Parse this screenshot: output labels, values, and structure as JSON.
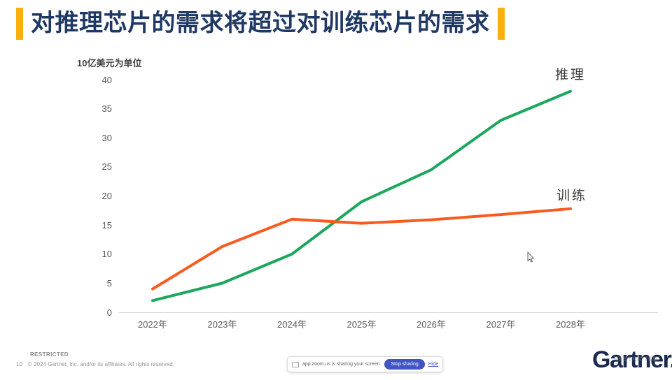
{
  "title": {
    "text": "对推理芯片的需求将超过对训练芯片的需求"
  },
  "chart_data": {
    "type": "line",
    "unit_label": "10亿美元为单位",
    "x": [
      "2022年",
      "2023年",
      "2024年",
      "2025年",
      "2026年",
      "2027年",
      "2028年"
    ],
    "series": [
      {
        "name": "推理",
        "color": "#1BA75E",
        "values": [
          2,
          5,
          10,
          19,
          24.5,
          33,
          38
        ]
      },
      {
        "name": "训练",
        "color": "#F95A1E",
        "values": [
          4,
          11.3,
          16,
          15.3,
          15.9,
          16.8,
          17.8
        ]
      }
    ],
    "ylim": [
      0,
      40
    ],
    "yticks": [
      0,
      5,
      10,
      15,
      20,
      25,
      30,
      35,
      40
    ],
    "grid": false,
    "legend_position": "end-of-line-labels",
    "axis_color": "#D9D9D9"
  },
  "footer": {
    "restricted": "RESTRICTED",
    "page_number": "10",
    "copyright": "© 2024 Gartner, Inc. and/or its affiliates. All rights reserved.",
    "logo_text": "Gartner.",
    "watermark": "RESTRICTED"
  },
  "share_bar": {
    "message": "app.zoom.us is sharing your screen.",
    "stop_button_label": "Stop sharing",
    "hide_link_label": "Hide",
    "button_color": "#4154C4"
  },
  "colors": {
    "accent_yellow": "#F7B10A",
    "title_navy": "#1F3864",
    "inference_green": "#1BA75E",
    "training_orange": "#F95A1E"
  }
}
